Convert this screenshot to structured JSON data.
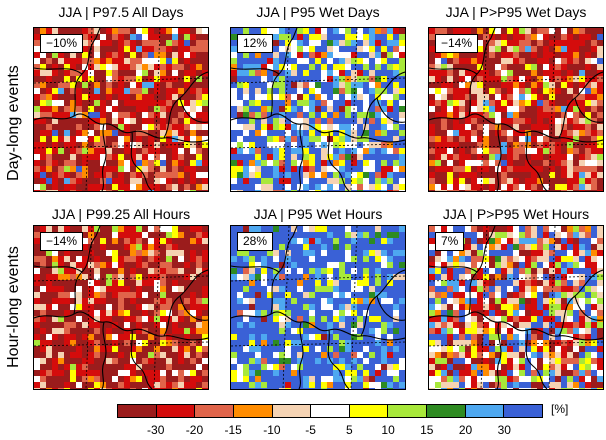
{
  "row_labels": [
    "Day-long events",
    "Hour-long events"
  ],
  "panels": [
    {
      "title": "JJA | P97.5 All Days",
      "value": "−10%",
      "tone": "red"
    },
    {
      "title": "JJA | P95 Wet Days",
      "value": "12%",
      "tone": "mixed-blue"
    },
    {
      "title": "JJA | P>P95 Wet Days",
      "value": "−14%",
      "tone": "red"
    },
    {
      "title": "JJA | P99.25 All Hours",
      "value": "−14%",
      "tone": "red-dark"
    },
    {
      "title": "JJA | P95 Wet Hours",
      "value": "28%",
      "tone": "blue"
    },
    {
      "title": "JJA | P>P95 Wet Hours",
      "value": "7%",
      "tone": "mixed"
    }
  ],
  "colorbar": {
    "unit": "[%]",
    "colors": [
      "#9b1c1c",
      "#d40c0c",
      "#e0644a",
      "#ff8c00",
      "#f5d3b3",
      "#ffffff",
      "#ffff00",
      "#a8e83a",
      "#2e8b22",
      "#4ea8f0",
      "#3a61d6"
    ],
    "tick_labels": [
      "-30",
      "-20",
      "-15",
      "-10",
      "-5",
      "5",
      "10",
      "15",
      "20",
      "30"
    ]
  }
}
